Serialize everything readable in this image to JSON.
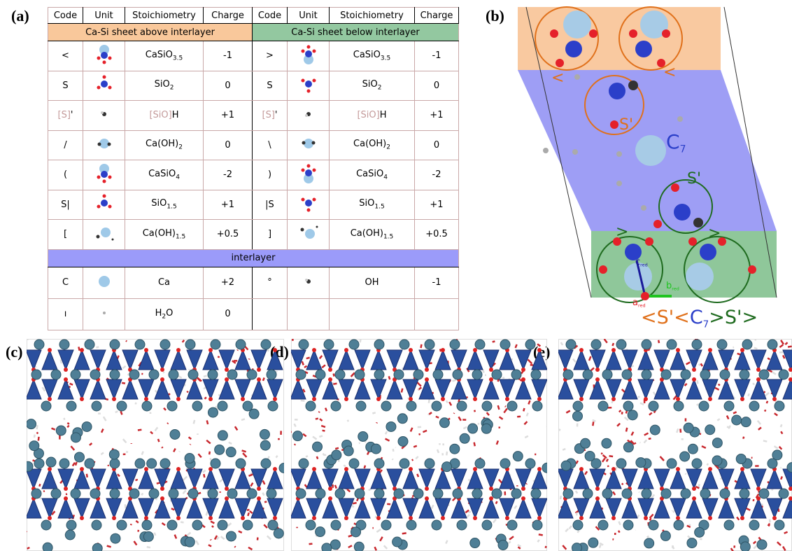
{
  "panels": {
    "a": "(a)",
    "b": "(b)",
    "c": "(c)",
    "d": "(d)",
    "e": "(e)"
  },
  "table": {
    "headers": [
      "Code",
      "Unit",
      "Stoichiometry",
      "Charge",
      "Code",
      "Unit",
      "Stoichiometry",
      "Charge"
    ],
    "sections": [
      "Ca-Si sheet above interlayer",
      "Ca-Si sheet below interlayer"
    ],
    "rows": [
      [
        {
          "code": "<",
          "stoich": [
            {
              "text": "CaSiO"
            },
            {
              "sub": "3.5"
            }
          ],
          "charge": "-1"
        },
        {
          "code": ">",
          "stoich": [
            {
              "text": "CaSiO"
            },
            {
              "sub": "3.5"
            }
          ],
          "charge": "-1"
        }
      ],
      [
        {
          "code": "S",
          "stoich": [
            {
              "text": "SiO"
            },
            {
              "sub": "2"
            }
          ],
          "charge": "0"
        },
        {
          "code": "S",
          "stoich": [
            {
              "text": "SiO"
            },
            {
              "sub": "2"
            }
          ],
          "charge": "0"
        }
      ],
      [
        {
          "code": [
            {
              "faded": "[S]"
            },
            {
              "text": "'"
            }
          ],
          "stoich": [
            {
              "faded": "[SiO]"
            },
            {
              "text": "H"
            }
          ],
          "charge": "+1"
        },
        {
          "code": [
            {
              "faded": "[S]"
            },
            {
              "text": "'"
            }
          ],
          "stoich": [
            {
              "faded": "[SiO]"
            },
            {
              "text": "H"
            }
          ],
          "charge": "+1"
        }
      ],
      [
        {
          "code": "/",
          "stoich": [
            {
              "text": "Ca(OH)"
            },
            {
              "sub": "2"
            }
          ],
          "charge": "0"
        },
        {
          "code": "\\",
          "stoich": [
            {
              "text": "Ca(OH)"
            },
            {
              "sub": "2"
            }
          ],
          "charge": "0"
        }
      ],
      [
        {
          "code": "(",
          "stoich": [
            {
              "text": "CaSiO"
            },
            {
              "sub": "4"
            }
          ],
          "charge": "-2"
        },
        {
          "code": ")",
          "stoich": [
            {
              "text": "CaSiO"
            },
            {
              "sub": "4"
            }
          ],
          "charge": "-2"
        }
      ],
      [
        {
          "code": "S|",
          "stoich": [
            {
              "text": "SiO"
            },
            {
              "sub": "1.5"
            }
          ],
          "charge": "+1"
        },
        {
          "code": "|S",
          "stoich": [
            {
              "text": "SiO"
            },
            {
              "sub": "1.5"
            }
          ],
          "charge": "+1"
        }
      ],
      [
        {
          "code": "[",
          "stoich": [
            {
              "text": "Ca(OH)"
            },
            {
              "sub": "1.5"
            }
          ],
          "charge": "+0.5"
        },
        {
          "code": "]",
          "stoich": [
            {
              "text": "Ca(OH)"
            },
            {
              "sub": "1.5"
            }
          ],
          "charge": "+0.5"
        }
      ]
    ],
    "interlayer": "interlayer",
    "interlayer_rows": [
      [
        {
          "code": "C",
          "stoich": [
            {
              "text": "Ca"
            }
          ],
          "charge": "+2"
        },
        {
          "code": "°",
          "stoich": [
            {
              "text": "OH"
            }
          ],
          "charge": "-1"
        }
      ],
      [
        {
          "code": "ı",
          "stoich": [
            {
              "text": "H"
            },
            {
              "sub": "2"
            },
            {
              "text": "O"
            }
          ],
          "charge": "0"
        },
        null
      ]
    ]
  },
  "diagram": {
    "labels": [
      "<",
      "<",
      "S'",
      ">",
      ">",
      "S'"
    ],
    "c7": [
      {
        "text": "C"
      },
      {
        "sub": "7"
      }
    ],
    "axes": {
      "c": [
        {
          "text": "c"
        },
        {
          "sub": "red"
        }
      ],
      "b": [
        {
          "text": "b"
        },
        {
          "sub": "red"
        }
      ],
      "a": [
        {
          "text": "a"
        },
        {
          "sub": "red"
        }
      ]
    },
    "formula": [
      {
        "text": "<S'<"
      },
      {
        "text": "C"
      },
      {
        "sub": "7"
      },
      {
        "text": ">S'>"
      }
    ]
  }
}
